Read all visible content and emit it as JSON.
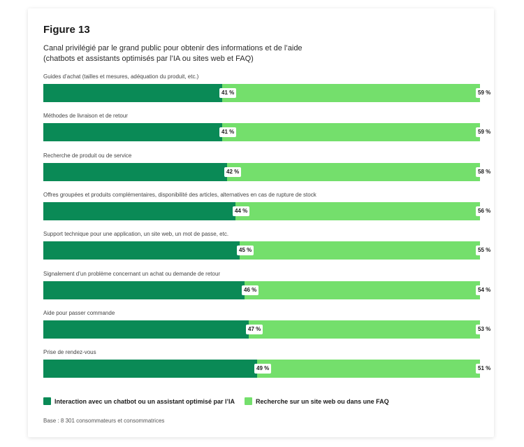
{
  "figure_label": "Figure 13",
  "subtitle_line1": "Canal privilégié par le grand public pour obtenir des informations et de l’aide",
  "subtitle_line2": "(chatbots et assistants optimisés par l’IA ou sites web et FAQ)",
  "base_note": "Base : 8 301 consommateurs et consommatrices",
  "colors": {
    "series_a": "#0a8a56",
    "series_b": "#74df6c"
  },
  "chart_data": {
    "type": "bar",
    "orientation": "horizontal",
    "stacked": true,
    "unit": "%",
    "xlim": [
      0,
      100
    ],
    "categories": [
      "Guides d’achat (tailles et mesures, adéquation du produit, etc.)",
      "Méthodes de livraison et de retour",
      "Recherche de produit ou de service",
      "Offres groupées et produits complémentaires, disponibilité des articles, alternatives en cas de rupture de stock",
      "Support technique pour une application, un site web, un mot de passe, etc.",
      "Signalement d’un problème concernant un achat ou demande de retour",
      "Aide pour passer commande",
      "Prise de rendez-vous"
    ],
    "series": [
      {
        "name": "Interaction avec un chatbot ou un assistant optimisé par l’IA",
        "values": [
          41,
          41,
          42,
          44,
          45,
          46,
          47,
          49
        ]
      },
      {
        "name": "Recherche sur un site web ou dans une FAQ",
        "values": [
          59,
          59,
          58,
          56,
          55,
          54,
          53,
          51
        ]
      }
    ],
    "value_labels": {
      "series_a": [
        "41 %",
        "41 %",
        "42 %",
        "44 %",
        "45 %",
        "46 %",
        "47 %",
        "49 %"
      ],
      "series_b": [
        "59 %",
        "59 %",
        "58 %",
        "56 %",
        "55 %",
        "54 %",
        "53 %",
        "51 %"
      ]
    },
    "legend_position": "bottom-left",
    "grid": false
  }
}
